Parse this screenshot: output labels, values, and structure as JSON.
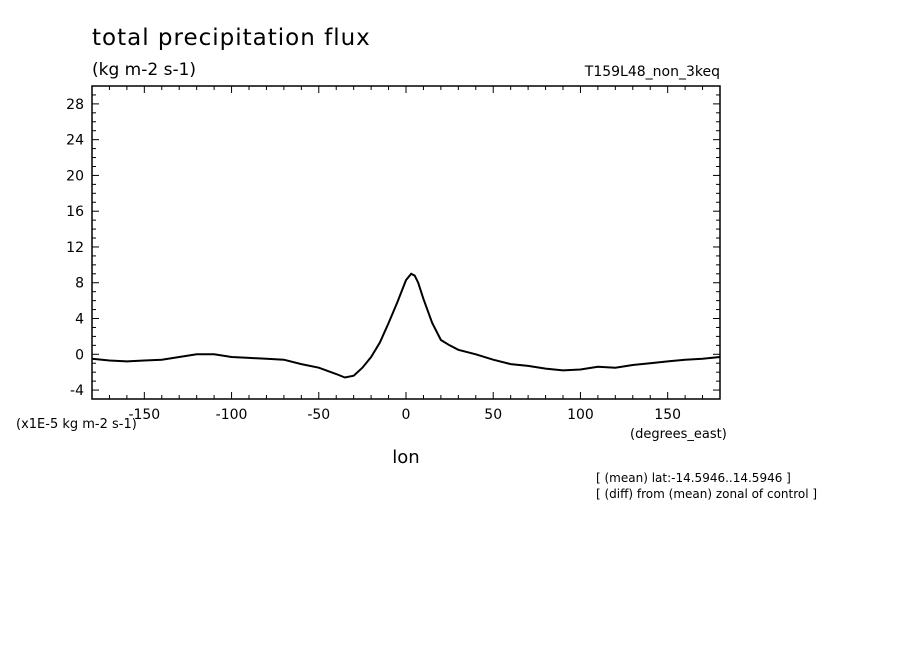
{
  "chart_data": {
    "type": "line",
    "title": "total precipitation flux",
    "subtitle": "(kg m-2 s-1)",
    "experiment": "T159L48_non_3keq",
    "xlabel": "lon",
    "xunits": "(degrees_east)",
    "yscale_label": "(x1E-5 kg m-2 s-1)",
    "xlim": [
      -180,
      180
    ],
    "ylim": [
      -5,
      30
    ],
    "xticks": [
      -150,
      -100,
      -50,
      0,
      50,
      100,
      150
    ],
    "xtick_labels": [
      "-150",
      "-100",
      "-50",
      "0",
      "50",
      "100",
      "150"
    ],
    "yticks": [
      -4,
      0,
      4,
      8,
      12,
      16,
      20,
      24,
      28
    ],
    "ytick_labels": [
      "-4",
      "0",
      "4",
      "8",
      "12",
      "16",
      "20",
      "24",
      "28"
    ],
    "annotations": [
      "[ (mean) lat:-14.5946..14.5946 ]",
      "[ (diff) from (mean) zonal of control ]"
    ],
    "grid": false,
    "series": [
      {
        "x": [
          -180,
          -170,
          -160,
          -150,
          -140,
          -130,
          -120,
          -110,
          -100,
          -90,
          -80,
          -70,
          -60,
          -50,
          -40,
          -35,
          -30,
          -25,
          -20,
          -15,
          -10,
          -5,
          0,
          3,
          5,
          7,
          10,
          15,
          20,
          25,
          30,
          40,
          50,
          60,
          70,
          80,
          90,
          100,
          110,
          120,
          130,
          140,
          150,
          160,
          170,
          180
        ],
        "y": [
          -0.5,
          -0.7,
          -0.8,
          -0.7,
          -0.6,
          -0.3,
          0.0,
          0.0,
          -0.3,
          -0.4,
          -0.5,
          -0.6,
          -1.1,
          -1.5,
          -2.2,
          -2.6,
          -2.4,
          -1.5,
          -0.3,
          1.3,
          3.5,
          5.8,
          8.3,
          9.0,
          8.8,
          8.0,
          6.2,
          3.5,
          1.6,
          1.0,
          0.5,
          0.0,
          -0.6,
          -1.1,
          -1.3,
          -1.6,
          -1.8,
          -1.7,
          -1.4,
          -1.5,
          -1.2,
          -1.0,
          -0.8,
          -0.6,
          -0.5,
          -0.3
        ]
      }
    ]
  }
}
